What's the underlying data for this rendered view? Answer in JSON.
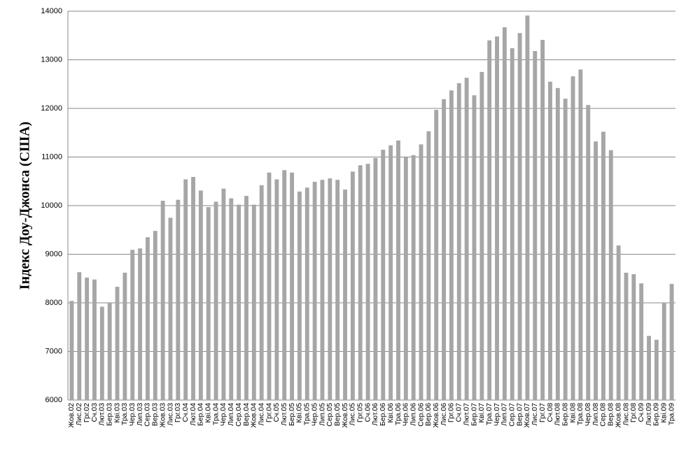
{
  "chart_data": {
    "type": "bar",
    "y_label": "Індекс Доу-Джонса  (США)",
    "categories": [
      "Жов.02",
      "Лис.02",
      "Грг.02",
      "Сч.03",
      "Лют.03",
      "Бер.03",
      "Кві.03",
      "Тра.03",
      "Чер.03",
      "Лип.03",
      "Сер.03",
      "Вер.03",
      "Жов.03",
      "Лис.03",
      "Грг.03",
      "Сч.04",
      "Лют.04",
      "Бер.04",
      "Кві.04",
      "Тра.04",
      "Чер.04",
      "Лип.04",
      "Сер.04",
      "Вер.04",
      "Жов.04",
      "Лис.04",
      "Грг.04",
      "Сч.05",
      "Лют.05",
      "Бер.05",
      "Кві.05",
      "Тра.05",
      "Чер.05",
      "Лип.05",
      "Сер.05",
      "Вер.05",
      "Жов.05",
      "Лис.05",
      "Грг.05",
      "Сч.06",
      "Лют.06",
      "Бер.06",
      "Кві.06",
      "Тра.06",
      "Чер.06",
      "Лип.06",
      "Сер.06",
      "Вер.06",
      "Жов.06",
      "Лис.06",
      "Грг.06",
      "Сч.07",
      "Лют.07",
      "Бер.07",
      "Кві.07",
      "Тра.07",
      "Чер.07",
      "Лип.07",
      "Сер.07",
      "Вер.07",
      "Жов.07",
      "Лис.07",
      "Грг.07",
      "Сч.08",
      "Лют.08",
      "Бер.08",
      "Кві.08",
      "Тра.08",
      "Чер.08",
      "Лип.08",
      "Сер.08",
      "Вер.08",
      "Жов.08",
      "Лис.08",
      "Грг.08",
      "Сч.09",
      "Лют.09",
      "Бер.09",
      "Кві.09",
      "Тра.09"
    ],
    "values": [
      8040,
      8630,
      8520,
      8480,
      7920,
      7990,
      8330,
      8620,
      9090,
      9120,
      9350,
      9480,
      10100,
      9750,
      10120,
      10540,
      10590,
      10310,
      9970,
      10080,
      10350,
      10150,
      10020,
      10200,
      10020,
      10420,
      10680,
      10540,
      10730,
      10680,
      10290,
      10370,
      10490,
      10530,
      10560,
      10530,
      10330,
      10700,
      10830,
      10860,
      10980,
      11150,
      11240,
      11340,
      11000,
      11040,
      11260,
      11530,
      11970,
      12190,
      12370,
      12520,
      12630,
      12270,
      12750,
      13400,
      13480,
      13670,
      13240,
      13550,
      13910,
      13180,
      13410,
      12550,
      12420,
      12200,
      12660,
      12800,
      12070,
      11320,
      11520,
      11140,
      9180,
      8620,
      8590,
      8400,
      7320,
      7240,
      8000,
      8390
    ],
    "color": "#a6a6a6",
    "ylim": [
      6000,
      14000
    ],
    "yticks": [
      6000,
      7000,
      8000,
      9000,
      10000,
      11000,
      12000,
      13000,
      14000
    ],
    "grid": true
  }
}
